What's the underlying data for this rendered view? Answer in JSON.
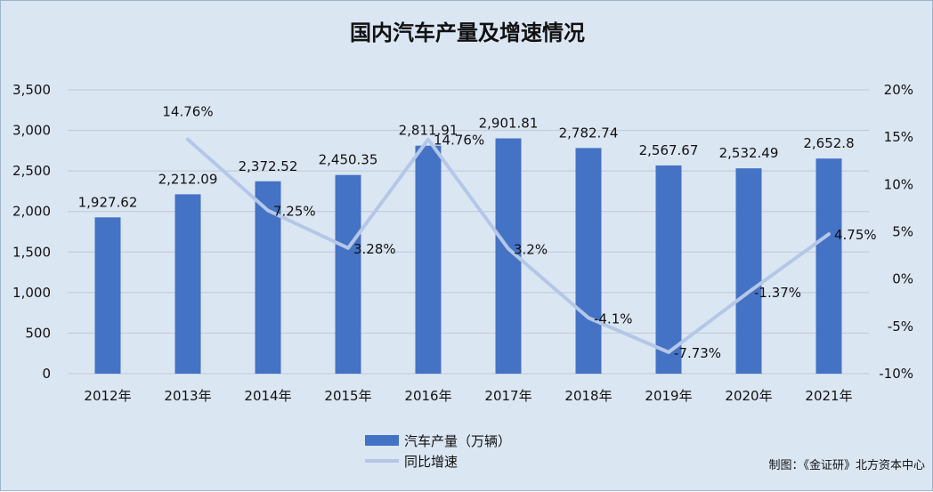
{
  "chart_data": {
    "type": "bar",
    "title": "国内汽车产量及增速情况",
    "categories": [
      "2012年",
      "2013年",
      "2014年",
      "2015年",
      "2016年",
      "2017年",
      "2018年",
      "2019年",
      "2020年",
      "2021年"
    ],
    "series": [
      {
        "name": "汽车产量（万辆）",
        "type": "bar",
        "axis": "left",
        "values": [
          1927.62,
          2212.09,
          2372.52,
          2450.35,
          2811.91,
          2901.81,
          2782.74,
          2567.67,
          2532.49,
          2652.8
        ],
        "labels": [
          "1,927.62",
          "2,212.09",
          "2,372.52",
          "2,450.35",
          "2,811.91",
          "2,901.81",
          "2,782.74",
          "2,567.67",
          "2,532.49",
          "2,652.8"
        ]
      },
      {
        "name": "同比增速",
        "type": "line",
        "axis": "right",
        "values": [
          null,
          14.76,
          7.25,
          3.28,
          14.76,
          3.2,
          -4.1,
          -7.73,
          -1.37,
          4.75
        ],
        "labels": [
          "",
          "14.76%",
          "7.25%",
          "3.28%",
          "14.76%",
          "3.2%",
          "-4.1%",
          "-7.73%",
          "-1.37%",
          "4.75%"
        ]
      }
    ],
    "y_left": {
      "min": 0,
      "max": 3500,
      "ticks": [
        "0",
        "500",
        "1,000",
        "1,500",
        "2,000",
        "2,500",
        "3,000",
        "3,500"
      ]
    },
    "y_right": {
      "min": -10,
      "max": 20,
      "ticks": [
        "-10%",
        "-5%",
        "0%",
        "5%",
        "10%",
        "15%",
        "20%"
      ]
    },
    "grid": true,
    "legend_position": "bottom",
    "colors": {
      "bar": "#4472c4",
      "line": "#b4c7e7",
      "background": "#dbe6f3",
      "grid": "#c0c9d4"
    }
  },
  "credit": "制图：《金证研》北方资本中心"
}
